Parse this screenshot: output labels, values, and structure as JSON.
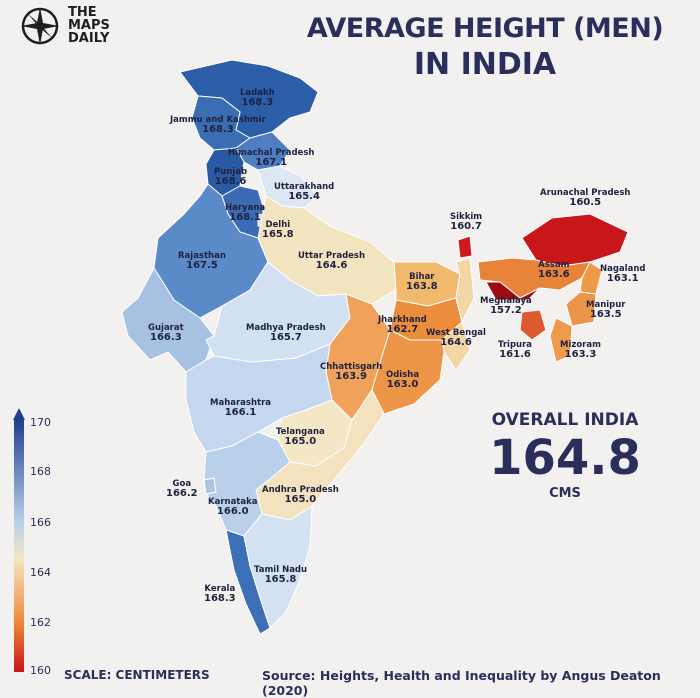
{
  "brand": {
    "line1": "THE",
    "line2": "MAPS",
    "line3": "DAILY"
  },
  "title": {
    "line1": "AVERAGE HEIGHT (MEN)",
    "line2": "IN INDIA"
  },
  "overall": {
    "label": "OVERALL INDIA",
    "value": "164.8",
    "unit": "CMS"
  },
  "scale": {
    "label": "SCALE: CENTIMETERS",
    "ticks": [
      "170",
      "168",
      "166",
      "164",
      "162",
      "160"
    ]
  },
  "source": "Source: Heights, Health and Inequality by Angus Deaton (2020)",
  "colors": {
    "tall": "#1f3f8f",
    "mid": "#c9d9ee",
    "neutral": "#f3e6c3",
    "short": "#c8141a"
  },
  "states": [
    {
      "name": "Ladakh",
      "value": "168.3"
    },
    {
      "name": "Jammu and Kashmir",
      "value": "168.3"
    },
    {
      "name": "Himachal Pradesh",
      "value": "167.1"
    },
    {
      "name": "Punjab",
      "value": "168.6"
    },
    {
      "name": "Uttarakhand",
      "value": "165.4"
    },
    {
      "name": "Haryana",
      "value": "168.1"
    },
    {
      "name": "Delhi",
      "value": "165.8"
    },
    {
      "name": "Rajasthan",
      "value": "167.5"
    },
    {
      "name": "Uttar Pradesh",
      "value": "164.6"
    },
    {
      "name": "Bihar",
      "value": "163.8"
    },
    {
      "name": "Sikkim",
      "value": "160.7"
    },
    {
      "name": "Arunachal Pradesh",
      "value": "160.5"
    },
    {
      "name": "Assam",
      "value": "163.6"
    },
    {
      "name": "Nagaland",
      "value": "163.1"
    },
    {
      "name": "Meghalaya",
      "value": "157.2"
    },
    {
      "name": "Manipur",
      "value": "163.5"
    },
    {
      "name": "Gujarat",
      "value": "166.3"
    },
    {
      "name": "Madhya Pradesh",
      "value": "165.7"
    },
    {
      "name": "Jharkhand",
      "value": "162.7"
    },
    {
      "name": "West Bengal",
      "value": "164.6"
    },
    {
      "name": "Tripura",
      "value": "161.6"
    },
    {
      "name": "Mizoram",
      "value": "163.3"
    },
    {
      "name": "Chhattisgarh",
      "value": "163.9"
    },
    {
      "name": "Odisha",
      "value": "163.0"
    },
    {
      "name": "Maharashtra",
      "value": "166.1"
    },
    {
      "name": "Telangana",
      "value": "165.0"
    },
    {
      "name": "Goa",
      "value": "166.2"
    },
    {
      "name": "Andhra Pradesh",
      "value": "165.0"
    },
    {
      "name": "Karnataka",
      "value": "166.0"
    },
    {
      "name": "Tamil Nadu",
      "value": "165.8"
    },
    {
      "name": "Kerala",
      "value": "168.3"
    }
  ]
}
